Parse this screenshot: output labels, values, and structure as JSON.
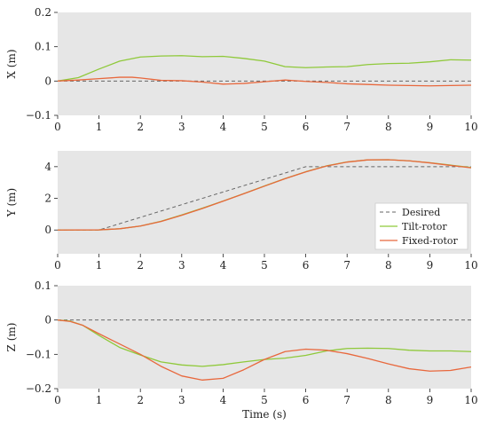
{
  "chart_data": [
    {
      "type": "line",
      "ylabel": "X (m)",
      "xlim": [
        0,
        10
      ],
      "ylim": [
        -0.1,
        0.2
      ],
      "xticks": [
        0,
        1,
        2,
        3,
        4,
        5,
        6,
        7,
        8,
        9,
        10
      ],
      "yticks": [
        -0.1,
        0,
        0.1,
        0.2
      ],
      "yticklabels": [
        "−0.1",
        "0",
        "0.1",
        "0.2"
      ],
      "grid": false,
      "series": [
        {
          "name": "Desired",
          "color": "#666666",
          "dash": true,
          "x": [
            0,
            10
          ],
          "y": [
            0,
            0
          ]
        },
        {
          "name": "Tilt-rotor",
          "color": "#8fc93a",
          "x": [
            0,
            0.5,
            1,
            1.5,
            2,
            2.5,
            3,
            3.5,
            4,
            4.5,
            5,
            5.5,
            6,
            6.5,
            7,
            7.5,
            8,
            8.5,
            9,
            9.5,
            10
          ],
          "y": [
            0,
            0.01,
            0.035,
            0.058,
            0.07,
            0.073,
            0.074,
            0.071,
            0.072,
            0.066,
            0.058,
            0.042,
            0.039,
            0.041,
            0.042,
            0.048,
            0.051,
            0.052,
            0.056,
            0.062,
            0.061
          ]
        },
        {
          "name": "Fixed-rotor",
          "color": "#e8683d",
          "x": [
            0,
            0.5,
            1,
            1.5,
            1.8,
            2,
            2.5,
            3,
            3.5,
            4,
            4.5,
            5,
            5.5,
            6,
            6.5,
            7,
            7.5,
            8,
            8.5,
            9,
            9.5,
            10
          ],
          "y": [
            0,
            0.003,
            0.007,
            0.011,
            0.011,
            0.009,
            0.002,
            0.001,
            -0.003,
            -0.009,
            -0.007,
            -0.002,
            0.003,
            -0.001,
            -0.004,
            -0.008,
            -0.01,
            -0.012,
            -0.013,
            -0.014,
            -0.013,
            -0.012
          ]
        }
      ]
    },
    {
      "type": "line",
      "ylabel": "Y (m)",
      "xlim": [
        0,
        10
      ],
      "ylim": [
        -1.5,
        5
      ],
      "xticks": [
        0,
        1,
        2,
        3,
        4,
        5,
        6,
        7,
        8,
        9,
        10
      ],
      "yticks": [
        0,
        2,
        4
      ],
      "yticklabels": [
        "0",
        "2",
        "4"
      ],
      "grid": false,
      "legend": {
        "position": "right",
        "entries": [
          "Desired",
          "Tilt-rotor",
          "Fixed-rotor"
        ]
      },
      "series": [
        {
          "name": "Desired",
          "color": "#666666",
          "dash": true,
          "x": [
            0,
            1,
            6,
            10
          ],
          "y": [
            0,
            0,
            4,
            4
          ]
        },
        {
          "name": "Tilt-rotor",
          "color": "#8fc93a",
          "x": [
            0,
            1,
            1.5,
            2,
            2.5,
            3,
            3.5,
            4,
            4.5,
            5,
            5.5,
            6,
            6.5,
            7,
            7.5,
            8,
            8.5,
            9,
            9.5,
            10
          ],
          "y": [
            0,
            0.01,
            0.08,
            0.25,
            0.55,
            0.95,
            1.38,
            1.83,
            2.3,
            2.78,
            3.25,
            3.68,
            4.05,
            4.3,
            4.43,
            4.44,
            4.37,
            4.25,
            4.1,
            3.95
          ]
        },
        {
          "name": "Fixed-rotor",
          "color": "#e8683d",
          "x": [
            0,
            1,
            1.5,
            2,
            2.5,
            3,
            3.5,
            4,
            4.5,
            5,
            5.5,
            6,
            6.5,
            7,
            7.5,
            8,
            8.5,
            9,
            9.5,
            10
          ],
          "y": [
            0,
            0.01,
            0.08,
            0.25,
            0.54,
            0.93,
            1.36,
            1.82,
            2.29,
            2.77,
            3.24,
            3.67,
            4.04,
            4.29,
            4.43,
            4.44,
            4.37,
            4.24,
            4.08,
            3.93
          ]
        }
      ]
    },
    {
      "type": "line",
      "ylabel": "Z (m)",
      "xlabel": "Time (s)",
      "xlim": [
        0,
        10
      ],
      "ylim": [
        -0.2,
        0.1
      ],
      "xticks": [
        0,
        1,
        2,
        3,
        4,
        5,
        6,
        7,
        8,
        9,
        10
      ],
      "yticks": [
        -0.2,
        -0.1,
        0,
        0.1
      ],
      "yticklabels": [
        "−0.2",
        "−0.1",
        "0",
        "0.1"
      ],
      "grid": false,
      "series": [
        {
          "name": "Desired",
          "color": "#666666",
          "dash": true,
          "x": [
            0,
            10
          ],
          "y": [
            0,
            0
          ]
        },
        {
          "name": "Tilt-rotor",
          "color": "#8fc93a",
          "x": [
            0,
            0.3,
            0.6,
            1,
            1.5,
            2,
            2.5,
            3,
            3.5,
            4,
            4.5,
            5,
            5.5,
            6,
            6.5,
            7,
            7.5,
            8,
            8.5,
            9,
            9.5,
            10
          ],
          "y": [
            0,
            -0.003,
            -0.015,
            -0.045,
            -0.08,
            -0.102,
            -0.122,
            -0.131,
            -0.135,
            -0.13,
            -0.122,
            -0.115,
            -0.111,
            -0.103,
            -0.09,
            -0.083,
            -0.082,
            -0.083,
            -0.088,
            -0.09,
            -0.09,
            -0.092
          ]
        },
        {
          "name": "Fixed-rotor",
          "color": "#e8683d",
          "x": [
            0,
            0.3,
            0.6,
            1,
            1.5,
            2,
            2.5,
            3,
            3.5,
            4,
            4.5,
            5,
            5.5,
            6,
            6.5,
            7,
            7.5,
            8,
            8.5,
            9,
            9.5,
            10
          ],
          "y": [
            0,
            -0.004,
            -0.015,
            -0.04,
            -0.07,
            -0.1,
            -0.135,
            -0.163,
            -0.175,
            -0.17,
            -0.145,
            -0.115,
            -0.092,
            -0.085,
            -0.088,
            -0.098,
            -0.112,
            -0.128,
            -0.142,
            -0.149,
            -0.147,
            -0.137
          ]
        }
      ]
    }
  ],
  "colors": {
    "plot_background": "#e6e6e6",
    "desired": "#666666",
    "tilt_rotor": "#8fc93a",
    "fixed_rotor": "#e8683d"
  }
}
